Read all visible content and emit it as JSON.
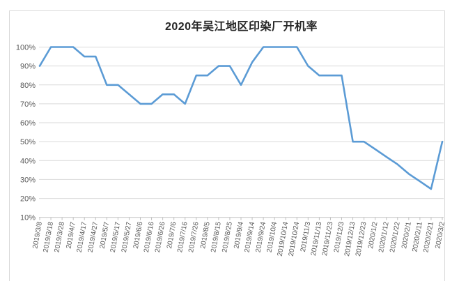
{
  "chart_data": {
    "type": "line",
    "title": "2020年吴江地区印染厂开机率",
    "xlabel": "",
    "ylabel": "",
    "legend_position": "none",
    "grid": "horizontal",
    "ylim": [
      10,
      100
    ],
    "y_tick_values": [
      100,
      90,
      80,
      70,
      60,
      50,
      40,
      30,
      20,
      10
    ],
    "y_tick_labels": [
      "100%",
      "90%",
      "80%",
      "70%",
      "60%",
      "50%",
      "40%",
      "30%",
      "20%",
      "10%"
    ],
    "categories": [
      "2019/3/8",
      "2019/3/18",
      "2019/3/28",
      "2019/4/7",
      "2019/4/17",
      "2019/4/27",
      "2019/5/7",
      "2019/5/17",
      "2019/5/27",
      "2019/6/6",
      "2019/6/16",
      "2019/6/26",
      "2019/7/6",
      "2019/7/16",
      "2019/7/26",
      "2019/8/5",
      "2019/8/15",
      "2019/8/25",
      "2019/9/4",
      "2019/9/14",
      "2019/9/24",
      "2019/10/4",
      "2019/10/14",
      "2019/10/24",
      "2019/11/3",
      "2019/11/13",
      "2019/11/23",
      "2019/12/3",
      "2019/12/13",
      "2019/12/23",
      "2020/1/2",
      "2020/1/12",
      "2020/1/22",
      "2020/2/1",
      "2020/2/11",
      "2020/2/21",
      "2020/3/2"
    ],
    "values": [
      90,
      100,
      100,
      100,
      95,
      95,
      80,
      80,
      75,
      70,
      70,
      75,
      75,
      70,
      85,
      85,
      90,
      90,
      80,
      92,
      100,
      100,
      100,
      100,
      90,
      85,
      85,
      85,
      50,
      50,
      46,
      42,
      38,
      33,
      29,
      25,
      50
    ],
    "unit": "%",
    "colors": {
      "line": "#5B9BD5",
      "gridline": "#D9D9D9",
      "axis": "#BFBFBF",
      "tick_label": "#595959",
      "title": "#262626",
      "frame": "#D9D9D9",
      "background": "#FFFFFF"
    }
  }
}
